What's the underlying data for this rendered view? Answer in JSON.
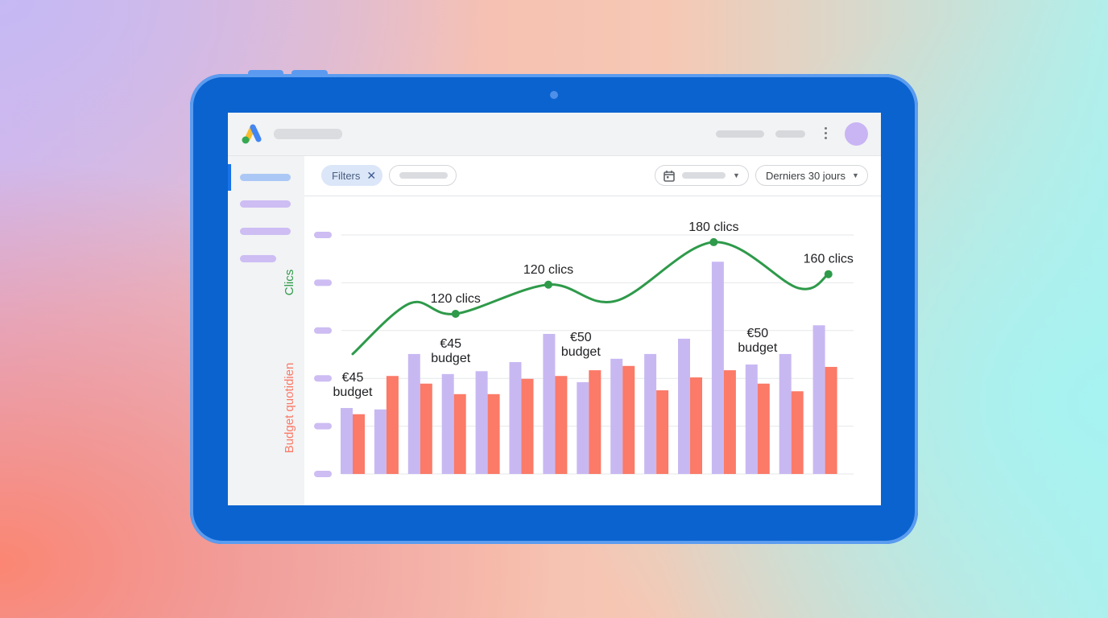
{
  "header": {
    "more_icon": "vertical-dots-icon",
    "logo": "google-ads-logo"
  },
  "toolbar": {
    "filter_chip": "Filters",
    "filter_close_icon": "close-icon",
    "calendar_icon": "calendar-icon",
    "date_range": "Derniers 30 jours"
  },
  "colors": {
    "frame": "#0b63cf",
    "clics": "#2e9a4a",
    "budget": "#fb7a68",
    "bars_secondary": "#c8b8f2",
    "accent": "#1a73e8"
  },
  "chart_data": {
    "type": "bar+line",
    "y_axis_left_labels": [
      "Clics",
      "Budget quotidien"
    ],
    "grid": true,
    "ylim": [
      0,
      5
    ],
    "categories": [
      0,
      1,
      2,
      3,
      4,
      5,
      6,
      7,
      8,
      9,
      10,
      11,
      12,
      13,
      14
    ],
    "series": [
      {
        "kind": "bar",
        "color": "#c8b8f2",
        "values": [
          1.38,
          1.35,
          2.51,
          2.09,
          2.15,
          2.34,
          2.93,
          1.92,
          2.41,
          2.51,
          2.83,
          4.44,
          2.29,
          2.51,
          3.11
        ]
      },
      {
        "kind": "bar",
        "color": "#fb7a68",
        "values": [
          1.25,
          2.05,
          1.89,
          1.67,
          1.67,
          1.99,
          2.05,
          2.17,
          2.26,
          1.75,
          2.02,
          2.17,
          1.89,
          1.73,
          2.24
        ]
      },
      {
        "kind": "line",
        "color": "#2e9a4a",
        "x": [
          0,
          1.7,
          3.05,
          5.8,
          7.8,
          10.7,
          13.2,
          14.1
        ],
        "y": [
          2.51,
          3.57,
          3.35,
          3.96,
          3.62,
          4.85,
          3.89,
          4.18
        ]
      }
    ],
    "point_labels": [
      {
        "x": 3.05,
        "y": 3.35,
        "text": "120 clics"
      },
      {
        "x": 5.8,
        "y": 3.96,
        "text": "120 clics"
      },
      {
        "x": 10.7,
        "y": 4.85,
        "text": "180 clics"
      },
      {
        "x": 14.1,
        "y": 4.18,
        "text": "160 clics"
      }
    ],
    "budget_labels": [
      {
        "category": 0,
        "line1": "€45",
        "line2": "budget"
      },
      {
        "category": 3,
        "line1": "€45",
        "line2": "budget"
      },
      {
        "category": 7,
        "line1": "€50",
        "line2": "budget"
      },
      {
        "category": 12,
        "line1": "€50",
        "line2": "budget"
      }
    ]
  }
}
